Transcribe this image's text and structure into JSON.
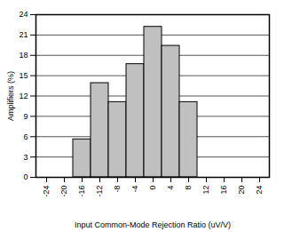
{
  "chart_data": {
    "type": "bar",
    "x_label": "Input Common-Mode Rejection Ratio (uV/V)",
    "y_label": "Amplifiers (%)",
    "categories": [
      "-24",
      "-20",
      "-16",
      "-12",
      "-8",
      "-4",
      "0",
      "4",
      "8",
      "12",
      "16",
      "20",
      "24"
    ],
    "values": [
      0,
      0,
      5.6,
      13.9,
      11.1,
      16.7,
      22.2,
      19.4,
      11.1,
      0,
      0,
      0,
      0
    ],
    "color": "#c0c0c0",
    "ylim": [
      0,
      24
    ],
    "yticks": [
      0,
      3,
      6,
      9,
      12,
      15,
      18,
      21,
      24
    ],
    "grid": true
  }
}
